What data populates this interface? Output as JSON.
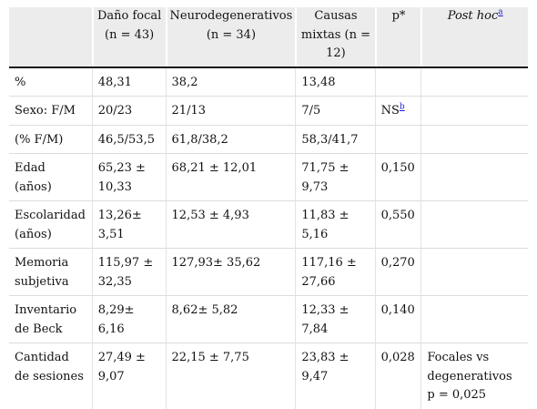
{
  "headers": {
    "c1": "",
    "c2": "Daño focal (n = 43)",
    "c3": "Neurodegenerativos (n = 34)",
    "c4": "Causas mixtas (n = 12)",
    "c5": "p*",
    "c6": "Post hoc",
    "c6_sup": "a"
  },
  "rows": [
    {
      "label": "%",
      "c2": "48,31",
      "c3": "38,2",
      "c4": "13,48",
      "c5": "",
      "c5_sup": "",
      "c6": ""
    },
    {
      "label": "Sexo: F/M",
      "c2": "20/23",
      "c3": "21/13",
      "c4": "7/5",
      "c5": "NS",
      "c5_sup": "b",
      "c6": ""
    },
    {
      "label": "(% F/M)",
      "c2": "46,5/53,5",
      "c3": "61,8/38,2",
      "c4": "58,3/41,7",
      "c5": "",
      "c5_sup": "",
      "c6": ""
    },
    {
      "label": "Edad (años)",
      "c2": "65,23 ± 10,33",
      "c3": "68,21 ± 12,01",
      "c4": "71,75 ± 9,73",
      "c5": "0,150",
      "c5_sup": "",
      "c6": ""
    },
    {
      "label": "Escolaridad (años)",
      "c2": "13,26± 3,51",
      "c3": "12,53 ± 4,93",
      "c4": "11,83 ± 5,16",
      "c5": "0,550",
      "c5_sup": "",
      "c6": ""
    },
    {
      "label": "Memoria subjetiva",
      "c2": "115,97 ± 32,35",
      "c3": "127,93± 35,62",
      "c4": "117,16 ± 27,66",
      "c5": "0,270",
      "c5_sup": "",
      "c6": ""
    },
    {
      "label": "Inventario de Beck",
      "c2": "8,29± 6,16",
      "c3": "8,62± 5,82",
      "c4": "12,33 ± 7,84",
      "c5": "0,140",
      "c5_sup": "",
      "c6": ""
    },
    {
      "label": "Cantidad de sesiones",
      "c2": "27,49 ± 9,07",
      "c3": "22,15 ± 7,75",
      "c4": "23,83 ± 9,47",
      "c5": "0,028",
      "c5_sup": "",
      "c6": "Focales vs degenerativos p = 0,025"
    }
  ]
}
